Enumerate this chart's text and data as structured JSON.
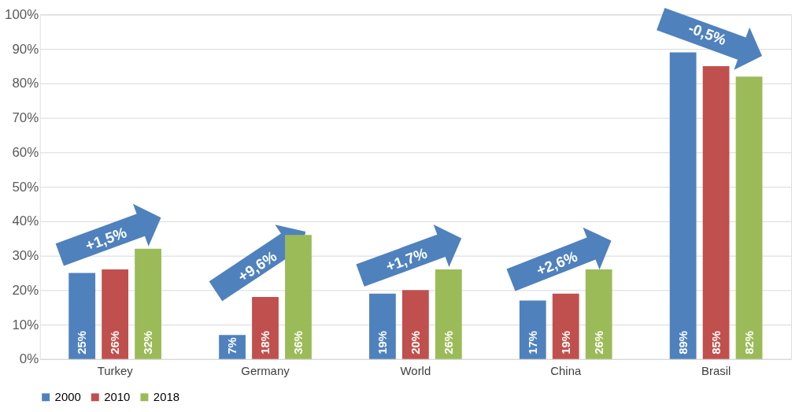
{
  "chart_data": {
    "type": "bar",
    "categories": [
      "Turkey",
      "Germany",
      "World",
      "China",
      "Brasil"
    ],
    "series": [
      {
        "name": "2000",
        "color": "#4f81bd",
        "values": [
          25,
          7,
          19,
          17,
          89
        ]
      },
      {
        "name": "2010",
        "color": "#c0504d",
        "values": [
          26,
          18,
          20,
          19,
          85
        ]
      },
      {
        "name": "2018",
        "color": "#9bbb59",
        "values": [
          32,
          36,
          26,
          26,
          82
        ]
      }
    ],
    "ylim": [
      0,
      100
    ],
    "yticks": [
      {
        "value": 0,
        "label": "0%"
      },
      {
        "value": 10,
        "label": "10%"
      },
      {
        "value": 20,
        "label": "20%"
      },
      {
        "value": 30,
        "label": "30%"
      },
      {
        "value": 40,
        "label": "40%"
      },
      {
        "value": 50,
        "label": "50%"
      },
      {
        "value": 60,
        "label": "60%"
      },
      {
        "value": 70,
        "label": "70%"
      },
      {
        "value": 80,
        "label": "80%"
      },
      {
        "value": 90,
        "label": "90%"
      },
      {
        "value": 100,
        "label": "100%"
      }
    ],
    "value_labels": [
      [
        "25%",
        "7%",
        "19%",
        "17%",
        "89%"
      ],
      [
        "26%",
        "18%",
        "20%",
        "19%",
        "85%"
      ],
      [
        "32%",
        "36%",
        "26%",
        "26%",
        "82%"
      ]
    ],
    "annotations": [
      "+1,5%",
      "+9,6%",
      "+1,7%",
      "+2,6%",
      "-0,5%"
    ],
    "grid": "y",
    "legend": "bottom"
  }
}
